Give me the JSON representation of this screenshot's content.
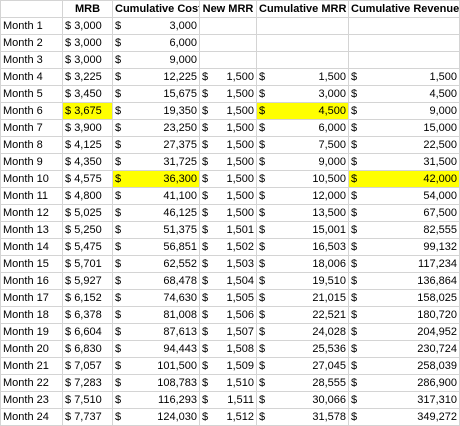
{
  "headers": [
    "",
    "MRB",
    "Cumulative Cost",
    "New MRR",
    "Cumulative MRR",
    "Cumulative Revenue"
  ],
  "currency_symbol": "$",
  "highlight_color": "#ffff00",
  "rows": [
    {
      "label": "Month 1",
      "mrb": "3,000",
      "cum_cost": "3,000",
      "new_mrr": "",
      "cum_mrr": "",
      "cum_rev": ""
    },
    {
      "label": "Month 2",
      "mrb": "3,000",
      "cum_cost": "6,000",
      "new_mrr": "",
      "cum_mrr": "",
      "cum_rev": ""
    },
    {
      "label": "Month 3",
      "mrb": "3,000",
      "cum_cost": "9,000",
      "new_mrr": "",
      "cum_mrr": "",
      "cum_rev": ""
    },
    {
      "label": "Month 4",
      "mrb": "3,225",
      "cum_cost": "12,225",
      "new_mrr": "1,500",
      "cum_mrr": "1,500",
      "cum_rev": "1,500"
    },
    {
      "label": "Month 5",
      "mrb": "3,450",
      "cum_cost": "15,675",
      "new_mrr": "1,500",
      "cum_mrr": "3,000",
      "cum_rev": "4,500"
    },
    {
      "label": "Month 6",
      "mrb": "3,675",
      "cum_cost": "19,350",
      "new_mrr": "1,500",
      "cum_mrr": "4,500",
      "cum_rev": "9,000"
    },
    {
      "label": "Month 7",
      "mrb": "3,900",
      "cum_cost": "23,250",
      "new_mrr": "1,500",
      "cum_mrr": "6,000",
      "cum_rev": "15,000"
    },
    {
      "label": "Month 8",
      "mrb": "4,125",
      "cum_cost": "27,375",
      "new_mrr": "1,500",
      "cum_mrr": "7,500",
      "cum_rev": "22,500"
    },
    {
      "label": "Month 9",
      "mrb": "4,350",
      "cum_cost": "31,725",
      "new_mrr": "1,500",
      "cum_mrr": "9,000",
      "cum_rev": "31,500"
    },
    {
      "label": "Month 10",
      "mrb": "4,575",
      "cum_cost": "36,300",
      "new_mrr": "1,500",
      "cum_mrr": "10,500",
      "cum_rev": "42,000"
    },
    {
      "label": "Month 11",
      "mrb": "4,800",
      "cum_cost": "41,100",
      "new_mrr": "1,500",
      "cum_mrr": "12,000",
      "cum_rev": "54,000"
    },
    {
      "label": "Month 12",
      "mrb": "5,025",
      "cum_cost": "46,125",
      "new_mrr": "1,500",
      "cum_mrr": "13,500",
      "cum_rev": "67,500"
    },
    {
      "label": "Month 13",
      "mrb": "5,250",
      "cum_cost": "51,375",
      "new_mrr": "1,501",
      "cum_mrr": "15,001",
      "cum_rev": "82,555"
    },
    {
      "label": "Month 14",
      "mrb": "5,475",
      "cum_cost": "56,851",
      "new_mrr": "1,502",
      "cum_mrr": "16,503",
      "cum_rev": "99,132"
    },
    {
      "label": "Month 15",
      "mrb": "5,701",
      "cum_cost": "62,552",
      "new_mrr": "1,503",
      "cum_mrr": "18,006",
      "cum_rev": "117,234"
    },
    {
      "label": "Month 16",
      "mrb": "5,927",
      "cum_cost": "68,478",
      "new_mrr": "1,504",
      "cum_mrr": "19,510",
      "cum_rev": "136,864"
    },
    {
      "label": "Month 17",
      "mrb": "6,152",
      "cum_cost": "74,630",
      "new_mrr": "1,505",
      "cum_mrr": "21,015",
      "cum_rev": "158,025"
    },
    {
      "label": "Month 18",
      "mrb": "6,378",
      "cum_cost": "81,008",
      "new_mrr": "1,506",
      "cum_mrr": "22,521",
      "cum_rev": "180,720"
    },
    {
      "label": "Month 19",
      "mrb": "6,604",
      "cum_cost": "87,613",
      "new_mrr": "1,507",
      "cum_mrr": "24,028",
      "cum_rev": "204,952"
    },
    {
      "label": "Month 20",
      "mrb": "6,830",
      "cum_cost": "94,443",
      "new_mrr": "1,508",
      "cum_mrr": "25,536",
      "cum_rev": "230,724"
    },
    {
      "label": "Month 21",
      "mrb": "7,057",
      "cum_cost": "101,500",
      "new_mrr": "1,509",
      "cum_mrr": "27,045",
      "cum_rev": "258,039"
    },
    {
      "label": "Month 22",
      "mrb": "7,283",
      "cum_cost": "108,783",
      "new_mrr": "1,510",
      "cum_mrr": "28,555",
      "cum_rev": "286,900"
    },
    {
      "label": "Month 23",
      "mrb": "7,510",
      "cum_cost": "116,293",
      "new_mrr": "1,511",
      "cum_mrr": "30,066",
      "cum_rev": "317,310"
    },
    {
      "label": "Month 24",
      "mrb": "7,737",
      "cum_cost": "124,030",
      "new_mrr": "1,512",
      "cum_mrr": "31,578",
      "cum_rev": "349,272"
    }
  ],
  "highlights": [
    {
      "row": "Month 6",
      "cols": [
        "mrb",
        "cum_mrr"
      ]
    },
    {
      "row": "Month 10",
      "cols": [
        "cum_cost",
        "cum_rev"
      ]
    }
  ]
}
